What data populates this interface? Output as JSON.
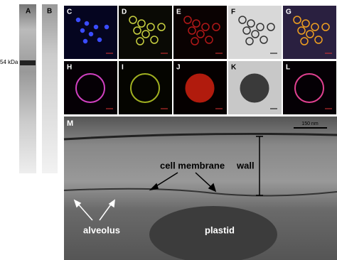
{
  "blot": {
    "lanes": [
      "A",
      "B"
    ],
    "marker": "54 kDa"
  },
  "panels": [
    "C",
    "D",
    "E",
    "F",
    "G",
    "H",
    "I",
    "J",
    "K",
    "L"
  ],
  "em": {
    "label": "M",
    "scale_bar": "150 nm",
    "cell_membrane": "cell membrane",
    "wall": "wall",
    "alveolus": "alveolus",
    "plastid": "plastid"
  }
}
